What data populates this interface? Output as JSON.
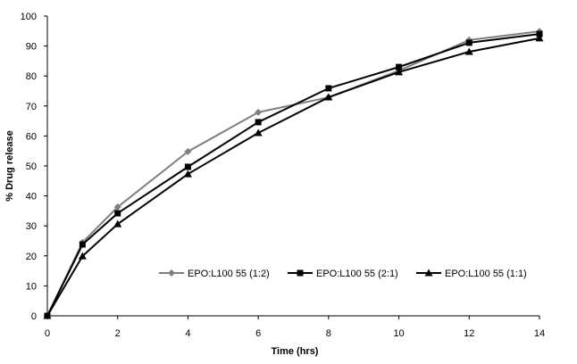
{
  "chart_data": {
    "type": "line",
    "title": "",
    "xlabel": "Time (hrs)",
    "ylabel": "% Drug release",
    "xlim": [
      0,
      14
    ],
    "ylim": [
      0,
      100
    ],
    "xticks": [
      0,
      2,
      4,
      6,
      8,
      10,
      12,
      14
    ],
    "yticks": [
      0,
      10,
      20,
      30,
      40,
      50,
      60,
      70,
      80,
      90,
      100
    ],
    "grid": false,
    "legend_position": "lower-right",
    "x": [
      0,
      1,
      2,
      4,
      6,
      8,
      10,
      12,
      14
    ],
    "series": [
      {
        "name": "EPO:L100 55 (1:2)",
        "marker": "diamond",
        "color": "#7f7f7f",
        "values": [
          0,
          24.5,
          36.3,
          54.8,
          67.9,
          72.9,
          81.8,
          92.0,
          94.9
        ]
      },
      {
        "name": "EPO:L100 55 (2:1)",
        "marker": "square",
        "color": "#000000",
        "values": [
          0,
          23.8,
          34.2,
          49.7,
          64.6,
          75.9,
          83.0,
          91.1,
          94.0
        ]
      },
      {
        "name": "EPO:L100 55 (1:1)",
        "marker": "triangle",
        "color": "#000000",
        "values": [
          0,
          19.9,
          30.6,
          47.3,
          61.0,
          72.9,
          81.3,
          88.1,
          92.6
        ]
      }
    ]
  }
}
